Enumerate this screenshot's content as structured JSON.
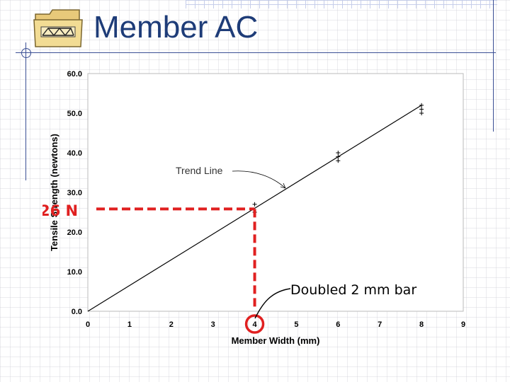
{
  "slide": {
    "title": "Member AC",
    "icon": "bridge-truss-folder-icon"
  },
  "annotations": {
    "value_callout": "26 N",
    "point_callout": "Doubled 2 mm bar",
    "trend_callout": "Trend Line"
  },
  "colors": {
    "title": "#1e3c78",
    "highlight": "#e02020",
    "line": "#000000"
  },
  "chart_data": {
    "type": "line",
    "title": "",
    "xlabel": "Member Width (mm)",
    "ylabel": "Tensile Strength (newtons)",
    "xlim": [
      0,
      9
    ],
    "ylim": [
      0,
      60
    ],
    "x_ticks": [
      "0",
      "1",
      "2",
      "3",
      "4",
      "5",
      "6",
      "7",
      "8",
      "9"
    ],
    "y_ticks": [
      "0.0",
      "10.0",
      "20.0",
      "30.0",
      "40.0",
      "50.0",
      "60.0"
    ],
    "trend_line": {
      "x": [
        0,
        8
      ],
      "y": [
        0,
        52
      ]
    },
    "points": [
      {
        "x": 4,
        "y": 25
      },
      {
        "x": 4,
        "y": 27
      },
      {
        "x": 6,
        "y": 38
      },
      {
        "x": 6,
        "y": 39
      },
      {
        "x": 6,
        "y": 40
      },
      {
        "x": 8,
        "y": 50
      },
      {
        "x": 8,
        "y": 51
      },
      {
        "x": 8,
        "y": 52
      }
    ],
    "highlight": {
      "x": 4,
      "y": 26
    },
    "grid": false
  }
}
